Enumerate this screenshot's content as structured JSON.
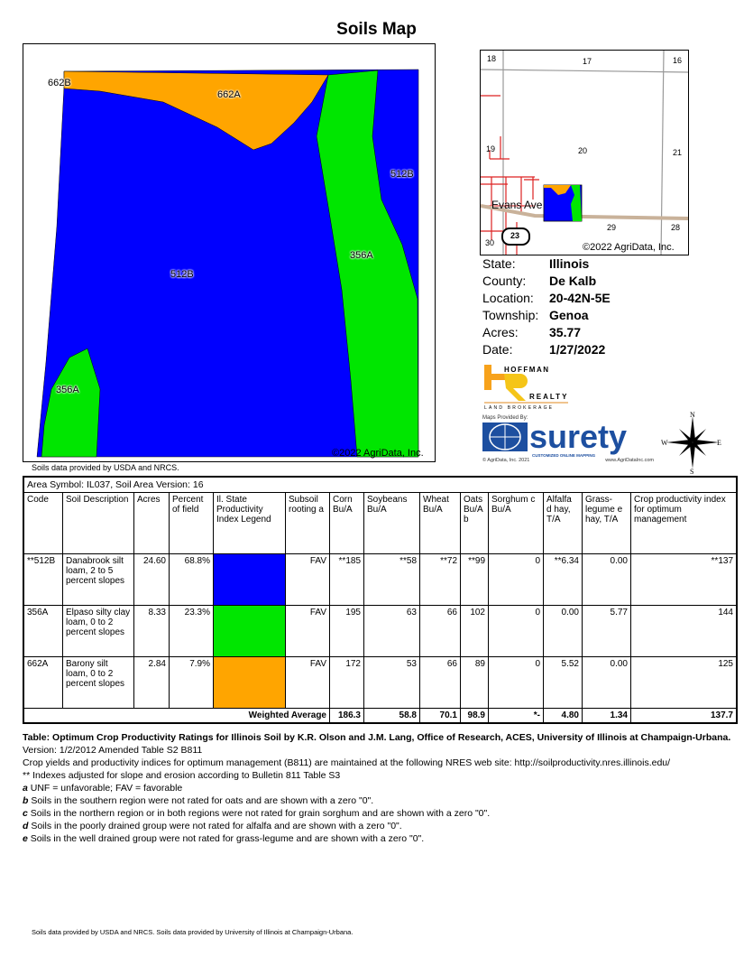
{
  "title": "Soils Map",
  "map": {
    "labels": [
      "662B",
      "662A",
      "512B",
      "512B",
      "356A",
      "356A"
    ],
    "copyright": "©2022 AgriData, Inc.",
    "source": "Soils data provided by USDA and NRCS.",
    "colors": {
      "512B": "#0000ff",
      "356A": "#00e600",
      "662A": "#ffa500"
    }
  },
  "locator": {
    "sections": [
      "18",
      "17",
      "16",
      "19",
      "20",
      "21",
      "30",
      "29",
      "28"
    ],
    "road": "Evans Ave",
    "route": "23",
    "copyright": "©2022 AgriData, Inc."
  },
  "info": [
    {
      "key": "State:",
      "value": "Illinois"
    },
    {
      "key": "County:",
      "value": "De Kalb"
    },
    {
      "key": "Location:",
      "value": "20-42N-5E"
    },
    {
      "key": "Township:",
      "value": "Genoa"
    },
    {
      "key": "Acres:",
      "value": "35.77"
    },
    {
      "key": "Date:",
      "value": "1/27/2022"
    }
  ],
  "logos": {
    "hoffman": "HOFFMAN REALTY LAND BROKERAGE",
    "maps_by": "Maps Provided By:",
    "surety": "surety",
    "surety_tag": "CUSTOMIZED ONLINE MAPPING",
    "agridata": "© AgriData, Inc. 2021",
    "url": "www.AgriDataInc.com",
    "compass": [
      "N",
      "S",
      "E",
      "W"
    ]
  },
  "table": {
    "area": "Area Symbol: IL037, Soil Area Version: 16",
    "headers": [
      "Code",
      "Soil Description",
      "Acres",
      "Percent of field",
      "Il. State Productivity Index Legend",
      "Subsoil rooting a",
      "Corn Bu/A",
      "Soybeans Bu/A",
      "Wheat Bu/A",
      "Oats Bu/A b",
      "Sorghum c Bu/A",
      "Alfalfa d hay, T/A",
      "Grass-legume e hay, T/A",
      "Crop productivity index for optimum management"
    ],
    "rows": [
      {
        "code": "**512B",
        "desc": "Danabrook silt loam, 2 to 5 percent slopes",
        "acres": "24.60",
        "pct": "68.8%",
        "color": "#0000ff",
        "rooting": "FAV",
        "corn": "**185",
        "soy": "**58",
        "wheat": "**72",
        "oats": "**99",
        "sorghum": "0",
        "alfalfa": "**6.34",
        "grass": "0.00",
        "cpi": "**137"
      },
      {
        "code": "356A",
        "desc": "Elpaso silty clay loam, 0 to 2 percent slopes",
        "acres": "8.33",
        "pct": "23.3%",
        "color": "#00e600",
        "rooting": "FAV",
        "corn": "195",
        "soy": "63",
        "wheat": "66",
        "oats": "102",
        "sorghum": "0",
        "alfalfa": "0.00",
        "grass": "5.77",
        "cpi": "144"
      },
      {
        "code": "662A",
        "desc": "Barony silt loam, 0 to 2 percent slopes",
        "acres": "2.84",
        "pct": "7.9%",
        "color": "#ffa500",
        "rooting": "FAV",
        "corn": "172",
        "soy": "53",
        "wheat": "66",
        "oats": "89",
        "sorghum": "0",
        "alfalfa": "5.52",
        "grass": "0.00",
        "cpi": "125"
      }
    ],
    "weighted": {
      "label": "Weighted Average",
      "corn": "186.3",
      "soy": "58.8",
      "wheat": "70.1",
      "oats": "98.9",
      "sorghum": "*-",
      "alfalfa": "4.80",
      "grass": "1.34",
      "cpi": "137.7"
    }
  },
  "notes": {
    "title_bold": "Table: Optimum Crop Productivity Ratings for Illinois Soil by K.R. Olson and J.M. Lang, Office of Research, ACES, University of Illinois at Champaign-Urbana.",
    "title_rest": " Version: 1/2/2012 Amended Table S2 B811",
    "line1": "Crop yields and productivity indices for optimum management (B811) are maintained at the following NRES web site: ",
    "link": "http://soilproductivity.nres.illinois.edu/",
    "line2": "** Indexes adjusted for slope and erosion according to Bulletin 811 Table S3",
    "a": " UNF = unfavorable; FAV = favorable",
    "b": " Soils in the southern region were not rated for oats and are shown with a zero \"0\".",
    "c": " Soils in the northern region or in both regions were not rated for grain sorghum and are shown with a zero \"0\".",
    "d": " Soils in the poorly drained group were not rated for alfalfa and are shown with a zero \"0\".",
    "e": " Soils in the well drained group were not rated for grass-legume and are shown with a zero \"0\"."
  },
  "footer": "Soils data provided by USDA and NRCS. Soils data provided by University of Illinois at Champaign-Urbana."
}
